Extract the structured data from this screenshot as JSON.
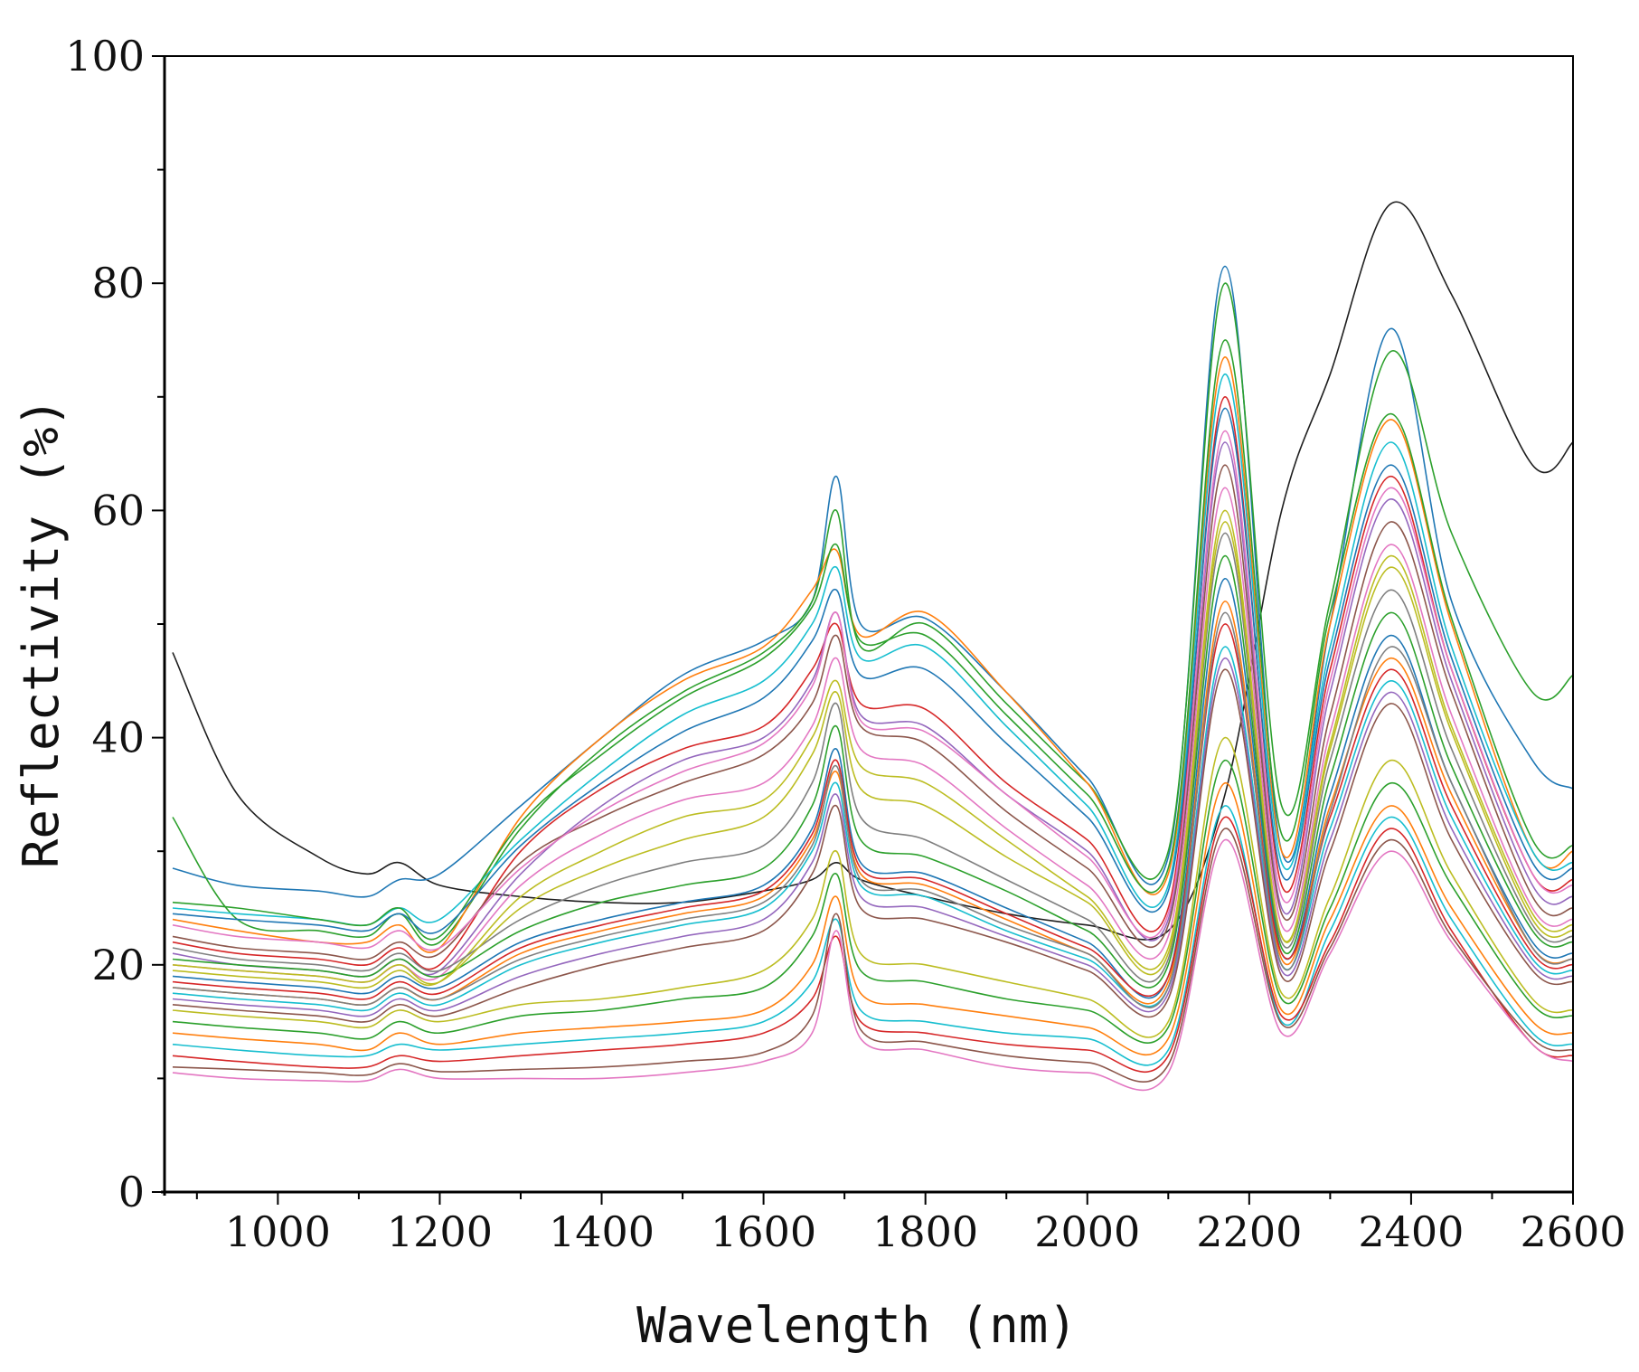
{
  "chart_data": {
    "type": "line",
    "title": "",
    "xlabel": "Wavelength (nm)",
    "ylabel": "Reflectivity (%)",
    "xlim": [
      860,
      2600
    ],
    "ylim": [
      0,
      100
    ],
    "x_ticks": [
      1000,
      1200,
      1400,
      1600,
      1800,
      2000,
      2200,
      2400,
      2600
    ],
    "x_tick_labels": [
      "1000",
      "1200",
      "1400",
      "1600",
      "1800",
      "2000",
      "2200",
      "2400",
      "2600"
    ],
    "y_ticks": [
      0,
      20,
      40,
      60,
      80,
      100
    ],
    "y_tick_labels": [
      "0",
      "20",
      "40",
      "60",
      "80",
      "100"
    ],
    "grid": false,
    "legend": "none",
    "wavelengths": [
      870,
      950,
      1050,
      1110,
      1150,
      1200,
      1300,
      1400,
      1500,
      1600,
      1660,
      1690,
      1720,
      1800,
      1900,
      2000,
      2100,
      2170,
      2240,
      2300,
      2375,
      2450,
      2550,
      2600
    ],
    "series": [
      {
        "color": "#1f1f1f",
        "values": [
          47.5,
          35.0,
          29.5,
          28.0,
          29.0,
          27.0,
          26.0,
          25.5,
          25.5,
          26.5,
          27.5,
          29.0,
          27.5,
          26.0,
          24.5,
          23.5,
          23.0,
          35.0,
          60.0,
          72.0,
          87.0,
          79.0,
          64.0,
          66.0
        ]
      },
      {
        "color": "#1f77b4",
        "values": [
          28.5,
          27.0,
          26.5,
          26.0,
          27.5,
          28.0,
          34.0,
          40.0,
          45.5,
          48.5,
          52.0,
          63.0,
          50.0,
          50.5,
          44.0,
          36.5,
          29.5,
          81.5,
          30.0,
          50.0,
          76.0,
          52.0,
          38.0,
          35.5
        ]
      },
      {
        "color": "#2ca02c",
        "values": [
          33.0,
          24.0,
          23.0,
          22.5,
          24.5,
          22.0,
          32.0,
          39.0,
          44.0,
          47.5,
          52.0,
          60.0,
          48.0,
          50.0,
          43.0,
          36.0,
          30.0,
          80.0,
          34.0,
          52.0,
          74.0,
          58.0,
          44.0,
          45.5
        ]
      },
      {
        "color": "#ff7f0e",
        "values": [
          24.0,
          23.0,
          22.0,
          22.0,
          23.5,
          21.5,
          33.0,
          40.0,
          45.0,
          48.0,
          53.0,
          56.5,
          49.0,
          51.0,
          44.0,
          36.0,
          28.0,
          73.5,
          30.0,
          50.0,
          68.0,
          50.0,
          30.0,
          30.0
        ]
      },
      {
        "color": "#17becf",
        "values": [
          25.0,
          24.5,
          24.0,
          23.5,
          25.0,
          24.0,
          31.0,
          37.0,
          42.0,
          45.0,
          50.0,
          55.0,
          47.0,
          48.0,
          41.0,
          34.0,
          27.0,
          72.0,
          29.0,
          48.0,
          66.0,
          48.0,
          30.0,
          29.0
        ]
      },
      {
        "color": "#d62728",
        "values": [
          22.0,
          21.0,
          20.5,
          20.0,
          21.5,
          20.0,
          30.0,
          35.5,
          39.0,
          41.0,
          46.0,
          50.0,
          43.0,
          42.5,
          36.0,
          31.0,
          25.0,
          70.0,
          27.0,
          46.0,
          63.0,
          46.0,
          28.0,
          27.5
        ]
      },
      {
        "color": "#9467bd",
        "values": [
          21.0,
          20.0,
          19.5,
          19.0,
          20.5,
          19.5,
          28.0,
          34.0,
          38.0,
          40.0,
          45.0,
          51.0,
          42.0,
          41.0,
          35.0,
          30.0,
          24.0,
          66.0,
          25.0,
          44.0,
          61.0,
          45.0,
          27.0,
          26.0
        ]
      },
      {
        "color": "#8c564b",
        "values": [
          22.5,
          21.5,
          21.0,
          20.5,
          22.0,
          21.0,
          29.0,
          33.0,
          36.0,
          38.5,
          43.0,
          49.0,
          41.0,
          39.5,
          33.5,
          28.5,
          23.5,
          64.0,
          24.5,
          42.0,
          59.0,
          44.0,
          26.0,
          25.0
        ]
      },
      {
        "color": "#e377c2",
        "values": [
          20.0,
          19.5,
          19.0,
          18.5,
          20.0,
          19.0,
          27.0,
          31.5,
          34.5,
          36.0,
          41.0,
          47.0,
          39.0,
          37.5,
          32.0,
          27.0,
          22.5,
          62.0,
          23.5,
          40.5,
          57.0,
          42.0,
          25.0,
          24.0
        ]
      },
      {
        "color": "#bcbd22",
        "values": [
          19.5,
          19.0,
          18.5,
          18.0,
          19.5,
          18.5,
          26.0,
          30.0,
          33.0,
          34.5,
          40.0,
          45.0,
          37.5,
          36.0,
          31.0,
          26.0,
          21.5,
          60.0,
          22.5,
          39.0,
          55.0,
          40.5,
          24.0,
          23.0
        ]
      },
      {
        "color": "#7f7f7f",
        "values": [
          21.5,
          20.5,
          20.0,
          19.5,
          21.0,
          19.5,
          24.0,
          27.0,
          29.0,
          30.5,
          36.0,
          43.0,
          33.0,
          31.0,
          27.5,
          24.0,
          20.5,
          58.0,
          22.0,
          38.0,
          53.0,
          39.0,
          23.5,
          22.5
        ]
      },
      {
        "color": "#2ca02c",
        "values": [
          20.5,
          20.0,
          19.5,
          19.0,
          20.5,
          19.0,
          23.0,
          25.5,
          27.0,
          28.5,
          34.0,
          41.0,
          31.0,
          29.5,
          26.5,
          23.0,
          20.0,
          56.0,
          21.5,
          36.5,
          51.0,
          37.5,
          23.0,
          22.0
        ]
      },
      {
        "color": "#1f77b4",
        "values": [
          19.0,
          18.5,
          18.0,
          17.5,
          19.0,
          18.0,
          22.0,
          24.0,
          25.5,
          27.0,
          32.0,
          39.0,
          29.0,
          28.0,
          25.0,
          22.0,
          19.0,
          54.0,
          21.0,
          35.0,
          49.0,
          36.0,
          22.0,
          21.0
        ]
      },
      {
        "color": "#ff7f0e",
        "values": [
          18.0,
          17.5,
          17.0,
          16.5,
          18.0,
          17.0,
          21.0,
          23.0,
          24.5,
          26.0,
          31.0,
          37.0,
          28.0,
          27.0,
          24.0,
          21.0,
          18.5,
          52.0,
          20.5,
          34.0,
          47.0,
          35.0,
          21.5,
          20.5
        ]
      },
      {
        "color": "#d62728",
        "values": [
          18.5,
          18.0,
          17.5,
          17.0,
          18.5,
          17.5,
          21.5,
          23.5,
          25.0,
          26.5,
          31.5,
          38.0,
          28.5,
          27.5,
          24.5,
          21.5,
          19.0,
          50.0,
          21.0,
          33.0,
          46.0,
          34.0,
          21.0,
          20.0
        ]
      },
      {
        "color": "#17becf",
        "values": [
          17.5,
          17.0,
          16.5,
          16.0,
          17.5,
          16.5,
          20.0,
          22.0,
          23.5,
          25.0,
          30.0,
          36.0,
          27.0,
          26.0,
          23.0,
          20.5,
          18.0,
          48.0,
          20.0,
          32.0,
          45.0,
          33.0,
          20.5,
          19.5
        ]
      },
      {
        "color": "#9467bd",
        "values": [
          17.0,
          16.5,
          16.0,
          15.5,
          17.0,
          16.0,
          19.0,
          21.0,
          22.5,
          24.0,
          29.0,
          35.0,
          26.0,
          25.0,
          22.5,
          20.0,
          17.5,
          47.0,
          19.5,
          31.0,
          44.0,
          32.0,
          20.0,
          19.0
        ]
      },
      {
        "color": "#8c564b",
        "values": [
          16.5,
          16.0,
          15.5,
          15.0,
          16.5,
          15.5,
          18.0,
          20.0,
          21.5,
          23.0,
          28.0,
          34.0,
          25.0,
          24.0,
          22.0,
          19.5,
          17.0,
          46.0,
          19.0,
          30.0,
          43.0,
          31.0,
          19.5,
          18.5
        ]
      },
      {
        "color": "#bcbd22",
        "values": [
          16.0,
          15.5,
          15.0,
          14.5,
          16.0,
          15.0,
          16.5,
          17.0,
          18.0,
          19.5,
          24.0,
          30.0,
          21.0,
          20.0,
          18.5,
          17.0,
          15.0,
          40.0,
          17.5,
          26.0,
          38.0,
          28.0,
          17.0,
          16.0
        ]
      },
      {
        "color": "#2ca02c",
        "values": [
          15.0,
          14.5,
          14.0,
          13.5,
          15.0,
          14.0,
          15.5,
          16.0,
          17.0,
          18.0,
          22.5,
          28.0,
          19.5,
          18.5,
          17.0,
          16.0,
          14.5,
          38.0,
          17.0,
          25.0,
          36.0,
          27.0,
          16.5,
          15.5
        ]
      },
      {
        "color": "#ff7f0e",
        "values": [
          14.0,
          13.5,
          13.0,
          12.5,
          14.0,
          13.0,
          14.0,
          14.5,
          15.0,
          16.0,
          20.0,
          26.0,
          17.5,
          16.5,
          15.5,
          14.5,
          13.5,
          36.0,
          16.0,
          24.0,
          34.0,
          25.0,
          15.0,
          14.0
        ]
      },
      {
        "color": "#17becf",
        "values": [
          13.0,
          12.5,
          12.0,
          12.0,
          13.0,
          12.5,
          13.0,
          13.5,
          14.0,
          15.0,
          18.5,
          24.0,
          16.0,
          15.0,
          14.0,
          13.5,
          12.5,
          34.0,
          15.0,
          23.0,
          33.0,
          24.0,
          14.0,
          13.0
        ]
      },
      {
        "color": "#d62728",
        "values": [
          12.0,
          11.5,
          11.0,
          11.0,
          12.0,
          11.5,
          12.0,
          12.5,
          13.0,
          14.0,
          17.0,
          22.5,
          15.0,
          14.0,
          13.0,
          12.5,
          12.0,
          33.0,
          15.5,
          22.0,
          32.0,
          23.0,
          13.0,
          12.0
        ]
      },
      {
        "color": "#e377c2",
        "values": [
          10.5,
          10.0,
          9.8,
          9.8,
          10.8,
          10.0,
          10.0,
          10.0,
          10.5,
          11.5,
          14.0,
          23.0,
          13.5,
          12.5,
          11.0,
          10.5,
          10.5,
          31.0,
          14.0,
          21.0,
          30.0,
          22.0,
          13.0,
          11.5
        ]
      },
      {
        "color": "#8c564b",
        "values": [
          11.0,
          10.8,
          10.5,
          10.3,
          11.3,
          10.6,
          10.8,
          11.0,
          11.5,
          12.3,
          15.5,
          24.5,
          14.3,
          13.2,
          12.0,
          11.4,
          11.2,
          32.0,
          14.8,
          21.5,
          31.0,
          22.5,
          13.5,
          12.5
        ]
      },
      {
        "color": "#2ca02c",
        "values": [
          25.5,
          25.0,
          24.0,
          23.5,
          25.0,
          22.5,
          32.5,
          38.5,
          43.5,
          47.0,
          51.5,
          57.0,
          48.5,
          49.0,
          42.0,
          35.0,
          28.5,
          75.0,
          31.5,
          51.0,
          68.5,
          50.5,
          31.0,
          30.5
        ]
      },
      {
        "color": "#1f77b4",
        "values": [
          24.5,
          24.0,
          23.5,
          23.0,
          24.5,
          23.0,
          30.5,
          36.0,
          40.5,
          43.5,
          48.5,
          53.0,
          45.5,
          46.0,
          39.5,
          33.0,
          26.5,
          69.0,
          28.0,
          47.0,
          64.0,
          47.0,
          29.0,
          28.5
        ]
      },
      {
        "color": "#e377c2",
        "values": [
          23.5,
          22.5,
          22.0,
          21.5,
          23.0,
          21.5,
          28.5,
          33.5,
          37.0,
          39.5,
          44.5,
          51.0,
          41.5,
          40.5,
          35.0,
          29.5,
          24.5,
          67.0,
          26.0,
          45.0,
          62.0,
          46.0,
          28.0,
          27.0
        ]
      },
      {
        "color": "#7f7f7f",
        "values": [
          18.0,
          17.5,
          17.0,
          16.5,
          18.0,
          17.0,
          20.5,
          22.5,
          24.0,
          25.5,
          30.5,
          37.5,
          27.5,
          26.5,
          23.5,
          21.0,
          18.0,
          51.0,
          20.0,
          33.5,
          48.0,
          36.0,
          21.5,
          20.5
        ]
      },
      {
        "color": "#bcbd22",
        "values": [
          20.0,
          19.5,
          19.0,
          18.5,
          20.0,
          18.5,
          25.0,
          28.5,
          31.0,
          33.0,
          38.5,
          44.0,
          35.5,
          34.0,
          29.5,
          25.5,
          21.0,
          59.0,
          22.5,
          39.5,
          56.0,
          41.0,
          24.5,
          23.5
        ]
      }
    ]
  }
}
